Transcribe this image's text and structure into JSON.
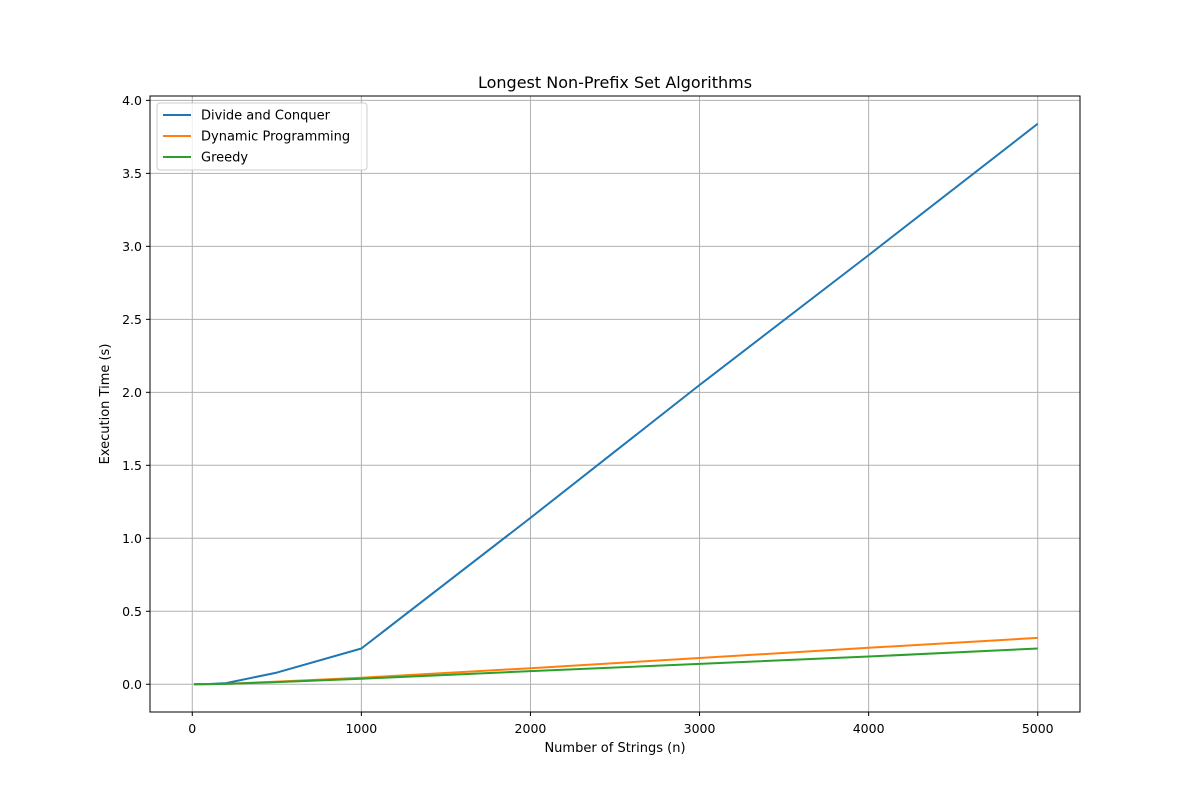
{
  "chart_data": {
    "type": "line",
    "title": "Longest Non-Prefix Set Algorithms",
    "xlabel": "Number of Strings (n)",
    "ylabel": "Execution Time (s)",
    "xlim": [
      -250,
      5250
    ],
    "ylim": [
      -0.19,
      4.03
    ],
    "xticks": [
      0,
      1000,
      2000,
      3000,
      4000,
      5000
    ],
    "yticks": [
      0.0,
      0.5,
      1.0,
      1.5,
      2.0,
      2.5,
      3.0,
      3.5,
      4.0
    ],
    "xtick_labels": [
      "0",
      "1000",
      "2000",
      "3000",
      "4000",
      "5000"
    ],
    "ytick_labels": [
      "0.0",
      "0.5",
      "1.0",
      "1.5",
      "2.0",
      "2.5",
      "3.0",
      "3.5",
      "4.0"
    ],
    "grid": true,
    "legend_position": "upper-left",
    "series": [
      {
        "name": "Divide and Conquer",
        "color": "#1f77b4",
        "x": [
          10,
          100,
          200,
          500,
          1000,
          2000,
          3000,
          4000,
          5000
        ],
        "y": [
          0.0,
          0.002,
          0.008,
          0.08,
          0.245,
          1.14,
          2.05,
          2.94,
          3.84
        ]
      },
      {
        "name": "Dynamic Programming",
        "color": "#ff7f0e",
        "x": [
          10,
          100,
          200,
          500,
          1000,
          2000,
          3000,
          4000,
          5000
        ],
        "y": [
          0.0,
          0.001,
          0.003,
          0.018,
          0.045,
          0.11,
          0.18,
          0.25,
          0.318
        ]
      },
      {
        "name": "Greedy",
        "color": "#2ca02c",
        "x": [
          10,
          100,
          200,
          500,
          1000,
          2000,
          3000,
          4000,
          5000
        ],
        "y": [
          0.0,
          0.001,
          0.003,
          0.015,
          0.038,
          0.09,
          0.14,
          0.19,
          0.245
        ]
      }
    ]
  }
}
